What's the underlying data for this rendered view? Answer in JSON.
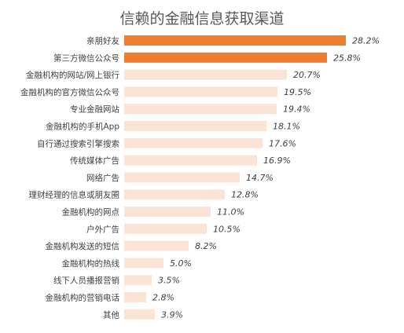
{
  "chart_data": {
    "type": "bar",
    "orientation": "horizontal",
    "title": "信赖的金融信息获取渠道",
    "categories": [
      "亲朋好友",
      "第三方微信公众号",
      "金融机构的网站/网上银行",
      "金融机构的官方微信公众号",
      "专业金融网站",
      "金融机构的手机App",
      "自行通过搜索引擎搜索",
      "传统媒体广告",
      "网络广告",
      "理财经理的信息或朋友圈",
      "金融机构的网点",
      "户外广告",
      "金融机构发送的短信",
      "金融机构的热线",
      "线下人员播报营销",
      "金融机构的营销电话",
      "其他"
    ],
    "values": [
      28.2,
      25.8,
      20.7,
      19.5,
      19.4,
      18.1,
      17.6,
      16.9,
      14.7,
      12.8,
      11.0,
      10.5,
      8.2,
      5.0,
      3.5,
      2.8,
      3.9
    ],
    "value_labels": [
      "28.2%",
      "25.8%",
      "20.7%",
      "19.5%",
      "19.4%",
      "18.1%",
      "17.6%",
      "16.9%",
      "14.7%",
      "12.8%",
      "11.0%",
      "10.5%",
      "8.2%",
      "5.0%",
      "3.5%",
      "2.8%",
      "3.9%"
    ],
    "highlight_count": 2,
    "colors": {
      "highlight": "#ed7d31",
      "normal": "#fbe4d5",
      "text": "#404040",
      "title": "#595959"
    },
    "grid": false,
    "legend": "none"
  }
}
